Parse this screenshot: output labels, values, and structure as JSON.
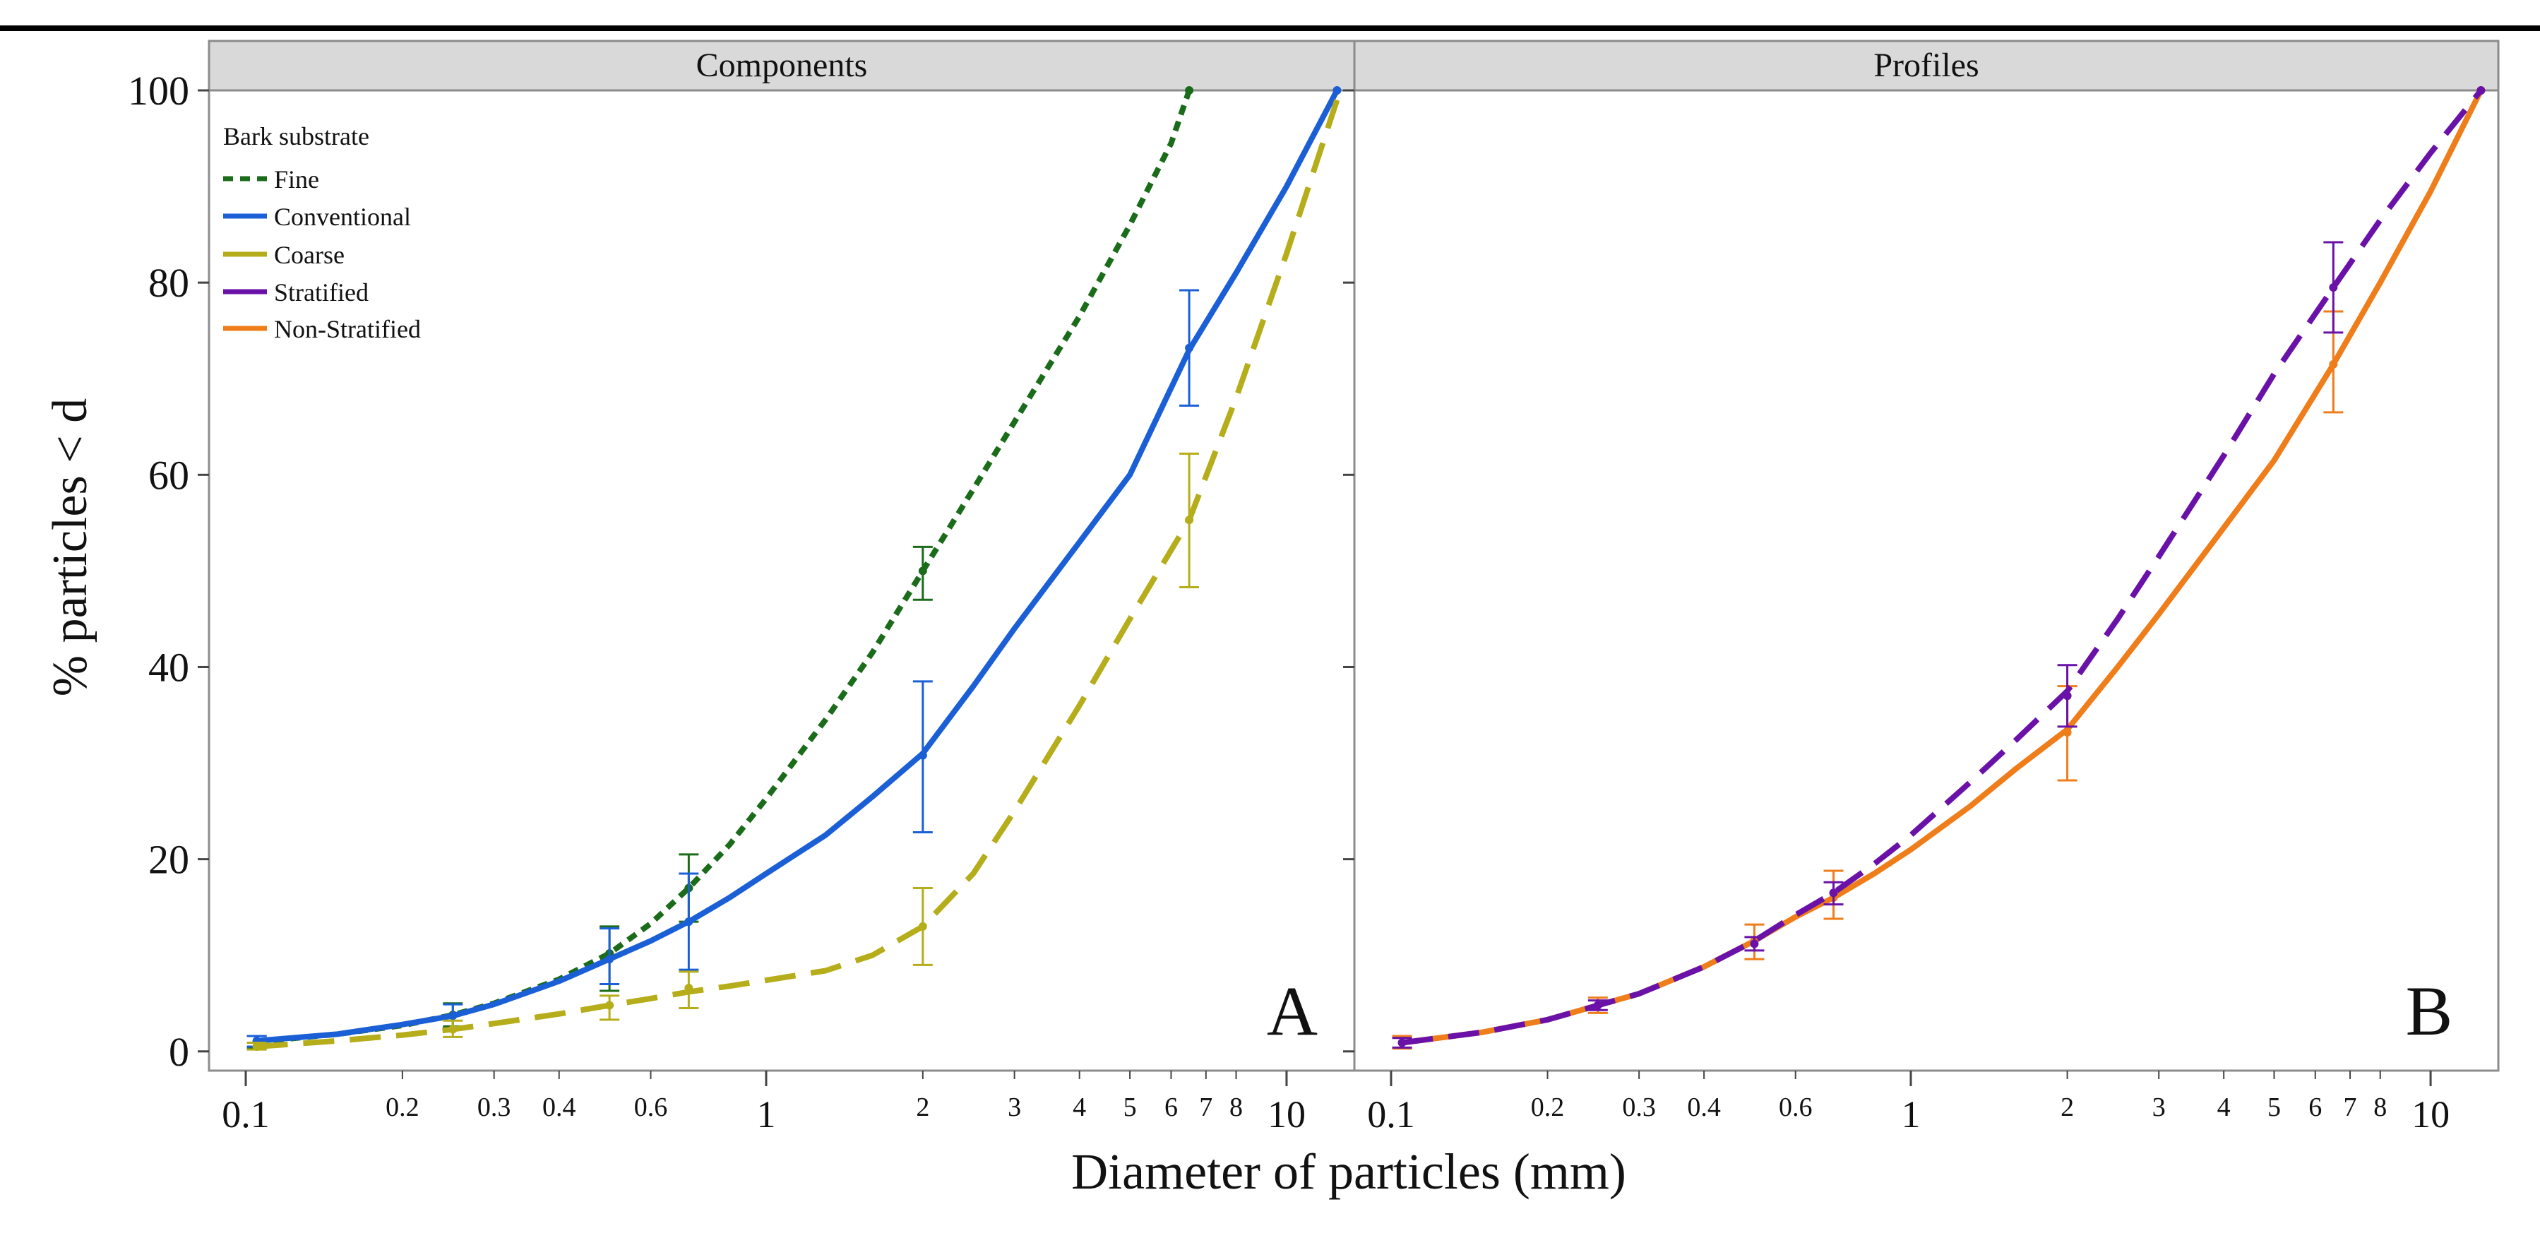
{
  "figure": {
    "y_axis_label": "% particles < d",
    "x_axis_label": "Diameter of particles (mm)"
  },
  "legend": {
    "title": "Bark substrate",
    "items": [
      {
        "key": "fine",
        "label": "Fine",
        "color": "#1a6b1a",
        "dash": "short-dash"
      },
      {
        "key": "conventional",
        "label": "Conventional",
        "color": "#1b5fd6",
        "dash": "solid"
      },
      {
        "key": "coarse",
        "label": "Coarse",
        "color": "#b5ad1a",
        "dash": "long-dash"
      },
      {
        "key": "stratified",
        "label": "Stratified",
        "color": "#6a11a8",
        "dash": "long-dash"
      },
      {
        "key": "non_stratified",
        "label": "Non-Stratified",
        "color": "#ee7d1a",
        "dash": "solid"
      }
    ]
  },
  "chart_data": [
    {
      "type": "line",
      "panel_title": "Components",
      "panel_letter": "A",
      "x_scale": "log",
      "xlim": [
        0.085,
        13.5
      ],
      "ylim": [
        -2,
        100
      ],
      "x_ticks_major": [
        {
          "value": 0.1,
          "label": "0.1"
        },
        {
          "value": 1,
          "label": "1"
        },
        {
          "value": 10,
          "label": "10"
        }
      ],
      "x_ticks_minor": [
        {
          "value": 0.2,
          "label": "0.2"
        },
        {
          "value": 0.3,
          "label": "0.3"
        },
        {
          "value": 0.4,
          "label": "0.4"
        },
        {
          "value": 0.6,
          "label": "0.6"
        },
        {
          "value": 2,
          "label": "2"
        },
        {
          "value": 3,
          "label": "3"
        },
        {
          "value": 4,
          "label": "4"
        },
        {
          "value": 5,
          "label": "5"
        },
        {
          "value": 6,
          "label": "6"
        },
        {
          "value": 7,
          "label": "7"
        },
        {
          "value": 8,
          "label": "8"
        }
      ],
      "y_ticks": [
        {
          "value": 0,
          "label": "0"
        },
        {
          "value": 20,
          "label": "20"
        },
        {
          "value": 40,
          "label": "40"
        },
        {
          "value": 60,
          "label": "60"
        },
        {
          "value": 80,
          "label": "80"
        },
        {
          "value": 100,
          "label": "100"
        }
      ],
      "series": [
        {
          "key": "fine",
          "curve": [
            [
              0.105,
              1.0
            ],
            [
              0.15,
              1.8
            ],
            [
              0.2,
              2.7
            ],
            [
              0.25,
              3.8
            ],
            [
              0.3,
              5.0
            ],
            [
              0.4,
              7.5
            ],
            [
              0.5,
              10.2
            ],
            [
              0.6,
              13.3
            ],
            [
              0.71,
              17.0
            ],
            [
              0.85,
              21.5
            ],
            [
              1.0,
              26.3
            ],
            [
              1.3,
              34.5
            ],
            [
              1.6,
              41.5
            ],
            [
              2.0,
              50.0
            ],
            [
              2.5,
              58.5
            ],
            [
              3.0,
              65.5
            ],
            [
              4.0,
              76.5
            ],
            [
              5.0,
              86.0
            ],
            [
              6.0,
              94.5
            ],
            [
              6.5,
              100.0
            ]
          ],
          "points": [
            {
              "x": 0.105,
              "y": 1.0,
              "lo": 0.3,
              "hi": 1.6
            },
            {
              "x": 0.25,
              "y": 3.8,
              "lo": 2.6,
              "hi": 5.0
            },
            {
              "x": 0.5,
              "y": 10.2,
              "lo": 6.3,
              "hi": 13.0
            },
            {
              "x": 0.71,
              "y": 17.0,
              "lo": 13.5,
              "hi": 20.5
            },
            {
              "x": 2.0,
              "y": 50.0,
              "lo": 47.0,
              "hi": 52.5
            },
            {
              "x": 6.5,
              "y": 100.0,
              "lo": 100.0,
              "hi": 100.0
            }
          ]
        },
        {
          "key": "conventional",
          "curve": [
            [
              0.105,
              1.1
            ],
            [
              0.15,
              1.8
            ],
            [
              0.2,
              2.8
            ],
            [
              0.25,
              3.7
            ],
            [
              0.3,
              4.9
            ],
            [
              0.4,
              7.3
            ],
            [
              0.5,
              9.6
            ],
            [
              0.6,
              11.5
            ],
            [
              0.71,
              13.5
            ],
            [
              0.85,
              16.0
            ],
            [
              1.0,
              18.5
            ],
            [
              1.3,
              22.5
            ],
            [
              1.6,
              26.5
            ],
            [
              2.0,
              31.0
            ],
            [
              2.5,
              38.0
            ],
            [
              3.0,
              44.0
            ],
            [
              4.0,
              53.0
            ],
            [
              5.0,
              60.0
            ],
            [
              6.5,
              73.0
            ],
            [
              8.0,
              81.0
            ],
            [
              10.0,
              90.0
            ],
            [
              12.5,
              100.0
            ]
          ],
          "points": [
            {
              "x": 0.105,
              "y": 1.1,
              "lo": 0.5,
              "hi": 1.6
            },
            {
              "x": 0.25,
              "y": 3.7,
              "lo": 2.4,
              "hi": 4.9
            },
            {
              "x": 0.5,
              "y": 9.6,
              "lo": 7.0,
              "hi": 12.8
            },
            {
              "x": 0.71,
              "y": 13.5,
              "lo": 8.5,
              "hi": 18.5
            },
            {
              "x": 2.0,
              "y": 30.8,
              "lo": 22.8,
              "hi": 38.5
            },
            {
              "x": 6.5,
              "y": 73.2,
              "lo": 67.2,
              "hi": 79.2
            },
            {
              "x": 12.5,
              "y": 100.0,
              "lo": 100.0,
              "hi": 100.0
            }
          ]
        },
        {
          "key": "coarse",
          "curve": [
            [
              0.105,
              0.5
            ],
            [
              0.15,
              1.1
            ],
            [
              0.2,
              1.7
            ],
            [
              0.25,
              2.3
            ],
            [
              0.3,
              2.9
            ],
            [
              0.4,
              3.9
            ],
            [
              0.5,
              4.8
            ],
            [
              0.6,
              5.5
            ],
            [
              0.71,
              6.2
            ],
            [
              0.85,
              6.8
            ],
            [
              1.0,
              7.4
            ],
            [
              1.3,
              8.4
            ],
            [
              1.6,
              10.0
            ],
            [
              2.0,
              13.0
            ],
            [
              2.5,
              18.5
            ],
            [
              3.0,
              25.0
            ],
            [
              4.0,
              36.0
            ],
            [
              5.0,
              45.0
            ],
            [
              6.5,
              55.3
            ],
            [
              8.0,
              68.0
            ],
            [
              10.0,
              83.0
            ],
            [
              12.5,
              99.0
            ]
          ],
          "points": [
            {
              "x": 0.105,
              "y": 0.5,
              "lo": 0.2,
              "hi": 0.9
            },
            {
              "x": 0.25,
              "y": 2.3,
              "lo": 1.5,
              "hi": 3.2
            },
            {
              "x": 0.5,
              "y": 4.8,
              "lo": 3.3,
              "hi": 5.8
            },
            {
              "x": 0.71,
              "y": 6.6,
              "lo": 4.5,
              "hi": 8.3
            },
            {
              "x": 2.0,
              "y": 13.0,
              "lo": 9.0,
              "hi": 17.0
            },
            {
              "x": 6.5,
              "y": 55.3,
              "lo": 48.3,
              "hi": 62.2
            }
          ]
        }
      ]
    },
    {
      "type": "line",
      "panel_title": "Profiles",
      "panel_letter": "B",
      "x_scale": "log",
      "xlim": [
        0.085,
        13.5
      ],
      "ylim": [
        -2,
        100
      ],
      "x_ticks_major": [
        {
          "value": 0.1,
          "label": "0.1"
        },
        {
          "value": 1,
          "label": "1"
        },
        {
          "value": 10,
          "label": "10"
        }
      ],
      "x_ticks_minor": [
        {
          "value": 0.2,
          "label": "0.2"
        },
        {
          "value": 0.3,
          "label": "0.3"
        },
        {
          "value": 0.4,
          "label": "0.4"
        },
        {
          "value": 0.6,
          "label": "0.6"
        },
        {
          "value": 2,
          "label": "2"
        },
        {
          "value": 3,
          "label": "3"
        },
        {
          "value": 4,
          "label": "4"
        },
        {
          "value": 5,
          "label": "5"
        },
        {
          "value": 6,
          "label": "6"
        },
        {
          "value": 7,
          "label": "7"
        },
        {
          "value": 8,
          "label": "8"
        }
      ],
      "y_ticks": [
        {
          "value": 0,
          "label": "0"
        },
        {
          "value": 20,
          "label": "20"
        },
        {
          "value": 40,
          "label": "40"
        },
        {
          "value": 60,
          "label": "60"
        },
        {
          "value": 80,
          "label": "80"
        },
        {
          "value": 100,
          "label": "100"
        }
      ],
      "series": [
        {
          "key": "non_stratified",
          "curve": [
            [
              0.105,
              0.9
            ],
            [
              0.15,
              2.0
            ],
            [
              0.2,
              3.3
            ],
            [
              0.25,
              4.8
            ],
            [
              0.3,
              6.0
            ],
            [
              0.4,
              8.8
            ],
            [
              0.5,
              11.5
            ],
            [
              0.6,
              14.0
            ],
            [
              0.71,
              16.0
            ],
            [
              0.85,
              18.5
            ],
            [
              1.0,
              21.0
            ],
            [
              1.3,
              25.5
            ],
            [
              1.6,
              29.5
            ],
            [
              2.0,
              33.5
            ],
            [
              2.5,
              40.0
            ],
            [
              3.0,
              45.5
            ],
            [
              4.0,
              54.5
            ],
            [
              5.0,
              61.5
            ],
            [
              6.5,
              71.5
            ],
            [
              8.0,
              80.0
            ],
            [
              10.0,
              89.5
            ],
            [
              12.5,
              100.0
            ]
          ],
          "points": [
            {
              "x": 0.105,
              "y": 0.9,
              "lo": 0.3,
              "hi": 1.6
            },
            {
              "x": 0.25,
              "y": 4.8,
              "lo": 4.0,
              "hi": 5.6
            },
            {
              "x": 0.5,
              "y": 11.5,
              "lo": 9.6,
              "hi": 13.2
            },
            {
              "x": 0.71,
              "y": 16.0,
              "lo": 13.8,
              "hi": 18.8
            },
            {
              "x": 2.0,
              "y": 33.2,
              "lo": 28.2,
              "hi": 38.0
            },
            {
              "x": 6.5,
              "y": 71.5,
              "lo": 66.5,
              "hi": 77.0
            },
            {
              "x": 12.5,
              "y": 100.0,
              "lo": 100.0,
              "hi": 100.0
            }
          ]
        },
        {
          "key": "stratified",
          "curve": [
            [
              0.105,
              0.9
            ],
            [
              0.15,
              2.0
            ],
            [
              0.2,
              3.3
            ],
            [
              0.25,
              4.8
            ],
            [
              0.3,
              6.0
            ],
            [
              0.4,
              8.8
            ],
            [
              0.5,
              11.5
            ],
            [
              0.6,
              14.2
            ],
            [
              0.71,
              16.5
            ],
            [
              0.85,
              19.5
            ],
            [
              1.0,
              22.5
            ],
            [
              1.3,
              28.0
            ],
            [
              1.6,
              32.5
            ],
            [
              2.0,
              37.5
            ],
            [
              2.5,
              45.0
            ],
            [
              3.0,
              51.5
            ],
            [
              4.0,
              62.0
            ],
            [
              5.0,
              70.5
            ],
            [
              6.5,
              79.5
            ],
            [
              8.0,
              86.5
            ],
            [
              10.0,
              93.5
            ],
            [
              12.5,
              100.0
            ]
          ],
          "points": [
            {
              "x": 0.105,
              "y": 0.9,
              "lo": 0.4,
              "hi": 1.4
            },
            {
              "x": 0.25,
              "y": 4.8,
              "lo": 4.3,
              "hi": 5.3
            },
            {
              "x": 0.5,
              "y": 11.2,
              "lo": 10.5,
              "hi": 11.9
            },
            {
              "x": 0.71,
              "y": 16.5,
              "lo": 15.3,
              "hi": 17.6
            },
            {
              "x": 2.0,
              "y": 37.0,
              "lo": 33.8,
              "hi": 40.2
            },
            {
              "x": 6.5,
              "y": 79.5,
              "lo": 74.8,
              "hi": 84.2
            },
            {
              "x": 12.5,
              "y": 100.0,
              "lo": 100.0,
              "hi": 100.0
            }
          ]
        }
      ]
    }
  ]
}
